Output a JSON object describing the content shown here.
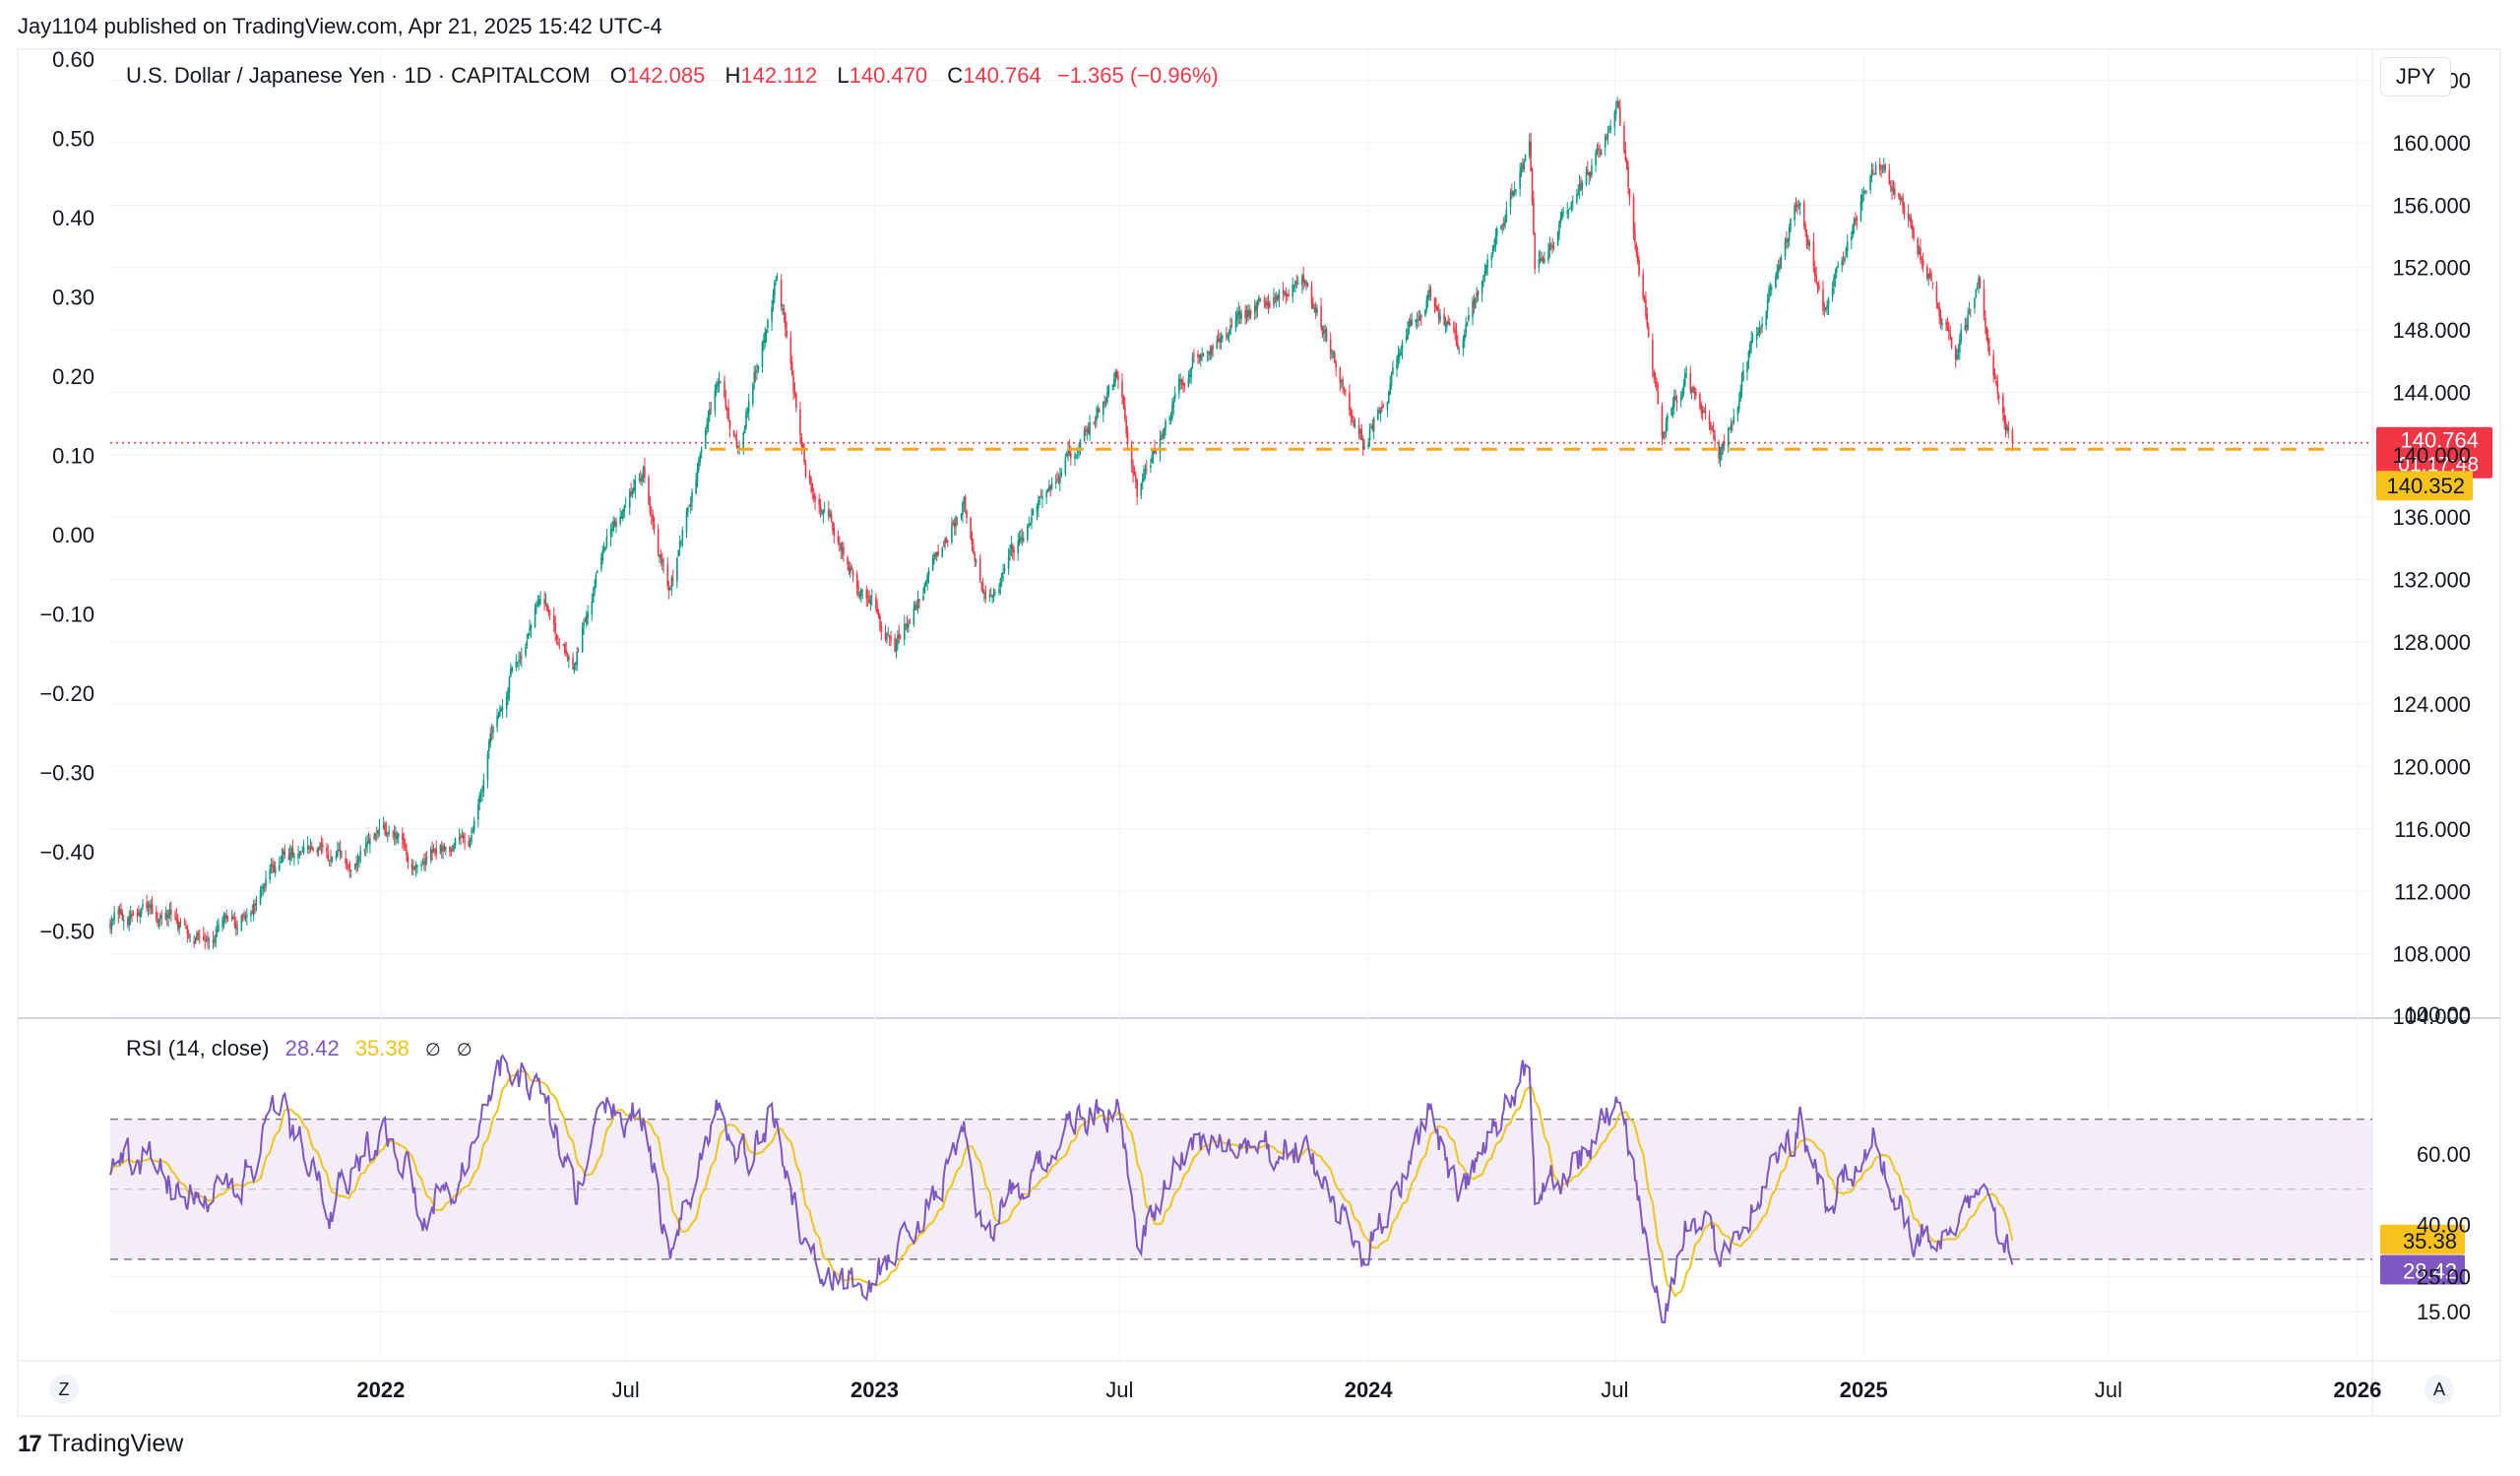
{
  "header": {
    "published": "Jay1104 published on TradingView.com, Apr 21, 2025 15:42 UTC-4"
  },
  "legend": {
    "symbol": "U.S. Dollar / Japanese Yen · 1D · CAPITALCOM",
    "o_label": "O",
    "o_value": "142.085",
    "h_label": "H",
    "h_value": "142.112",
    "l_label": "L",
    "l_value": "140.470",
    "c_label": "C",
    "c_value": "140.764",
    "change": "−1.365 (−0.96%)"
  },
  "rsi_legend": {
    "name": "RSI (14, close)",
    "rsi_value": "28.42",
    "ma_value": "35.38",
    "hidden_1": "∅",
    "hidden_2": "∅"
  },
  "currency_button": "JPY",
  "corner_left": "Z",
  "corner_right": "A",
  "branding": {
    "mark": "17",
    "name": "TradingView"
  },
  "colors": {
    "up": "#089981",
    "down": "#f23645",
    "rsi": "#7e57c2",
    "rsi_ma": "#f0c419",
    "support": "#f5a623",
    "grid": "#f0f3fa",
    "band": "#ede7f6"
  },
  "chart_data": [
    {
      "type": "candlestick",
      "title": "U.S. Dollar / Japanese Yen · 1D · CAPITALCOM",
      "y_unit": "JPY",
      "ylim": [
        104,
        166
      ],
      "x_range": [
        "2021-06-15",
        "2026-01-12"
      ],
      "right_ticks": [
        "164.000",
        "160.000",
        "156.000",
        "152.000",
        "148.000",
        "144.000",
        "140.000",
        "136.000",
        "132.000",
        "128.000",
        "124.000",
        "120.000",
        "116.000",
        "112.000",
        "108.000",
        "104.000"
      ],
      "left_ticks": [
        "0.60",
        "0.50",
        "0.40",
        "0.30",
        "0.20",
        "0.10",
        "0.00",
        "−0.10",
        "−0.20",
        "−0.30",
        "−0.40",
        "−0.50"
      ],
      "x_ticks": [
        {
          "label": "2022",
          "date": "2022-01-01",
          "bold": true
        },
        {
          "label": "Jul",
          "date": "2022-07-01",
          "bold": false
        },
        {
          "label": "2023",
          "date": "2023-01-01",
          "bold": true
        },
        {
          "label": "Jul",
          "date": "2023-07-01",
          "bold": false
        },
        {
          "label": "2024",
          "date": "2024-01-01",
          "bold": true
        },
        {
          "label": "Jul",
          "date": "2024-07-01",
          "bold": false
        },
        {
          "label": "2025",
          "date": "2025-01-01",
          "bold": true
        },
        {
          "label": "Jul",
          "date": "2025-07-01",
          "bold": false
        },
        {
          "label": "2026",
          "date": "2026-01-01",
          "bold": true
        }
      ],
      "keypoints": [
        [
          "2021-06-15",
          110.1
        ],
        [
          "2021-07-10",
          110.6
        ],
        [
          "2021-08-10",
          109.6
        ],
        [
          "2021-09-15",
          109.6
        ],
        [
          "2021-10-20",
          114.0
        ],
        [
          "2021-11-20",
          114.3
        ],
        [
          "2021-12-10",
          113.4
        ],
        [
          "2022-01-05",
          115.8
        ],
        [
          "2022-01-25",
          113.8
        ],
        [
          "2022-02-20",
          115.0
        ],
        [
          "2022-03-07",
          115.3
        ],
        [
          "2022-03-28",
          123.5
        ],
        [
          "2022-04-28",
          130.8
        ],
        [
          "2022-05-24",
          126.8
        ],
        [
          "2022-06-15",
          134.5
        ],
        [
          "2022-07-14",
          139.2
        ],
        [
          "2022-08-02",
          130.8
        ],
        [
          "2022-09-07",
          144.6
        ],
        [
          "2022-09-22",
          140.5
        ],
        [
          "2022-10-21",
          151.8
        ],
        [
          "2022-11-11",
          138.8
        ],
        [
          "2022-12-20",
          131.5
        ],
        [
          "2023-01-16",
          127.5
        ],
        [
          "2023-03-08",
          137.4
        ],
        [
          "2023-03-24",
          130.5
        ],
        [
          "2023-05-30",
          140.7
        ],
        [
          "2023-06-30",
          145.0
        ],
        [
          "2023-07-14",
          137.8
        ],
        [
          "2023-08-25",
          146.4
        ],
        [
          "2023-10-04",
          149.0
        ],
        [
          "2023-11-13",
          151.9
        ],
        [
          "2023-12-28",
          140.9
        ],
        [
          "2024-02-15",
          150.6
        ],
        [
          "2024-03-08",
          146.5
        ],
        [
          "2024-04-29",
          160.0
        ],
        [
          "2024-05-03",
          152.3
        ],
        [
          "2024-06-03",
          156.5
        ],
        [
          "2024-07-03",
          161.9
        ],
        [
          "2024-08-05",
          141.7
        ],
        [
          "2024-08-22",
          145.2
        ],
        [
          "2024-09-16",
          139.6
        ],
        [
          "2024-11-15",
          156.7
        ],
        [
          "2024-12-03",
          149.3
        ],
        [
          "2025-01-10",
          158.9
        ],
        [
          "2025-02-03",
          154.8
        ],
        [
          "2025-03-11",
          146.6
        ],
        [
          "2025-03-27",
          151.2
        ],
        [
          "2025-04-10",
          143.8
        ],
        [
          "2025-04-21",
          140.764
        ]
      ],
      "last_close": 140.764,
      "last_label": "140.764",
      "countdown": "01:17:48",
      "support_level": 140.352,
      "support_label": "140.352"
    },
    {
      "type": "line",
      "name": "RSI (14, close)",
      "ylim": [
        10,
        100
      ],
      "ticks": [
        "100.00",
        "60.00",
        "40.00",
        "25.00",
        "15.00"
      ],
      "tick_values": [
        100,
        60,
        40,
        25,
        15
      ],
      "band": [
        30,
        70
      ],
      "midline": 50,
      "last_rsi": 28.42,
      "last_ma": 35.38,
      "rsi_label": "28.42",
      "ma_label": "35.38",
      "rsi_keypoints": [
        [
          "2021-06-15",
          55
        ],
        [
          "2021-07-10",
          60
        ],
        [
          "2021-08-10",
          46
        ],
        [
          "2021-09-20",
          52
        ],
        [
          "2021-10-20",
          72
        ],
        [
          "2021-11-25",
          46
        ],
        [
          "2022-01-05",
          68
        ],
        [
          "2022-02-01",
          44
        ],
        [
          "2022-03-07",
          58
        ],
        [
          "2022-03-28",
          85
        ],
        [
          "2022-04-28",
          80
        ],
        [
          "2022-05-24",
          48
        ],
        [
          "2022-06-15",
          72
        ],
        [
          "2022-07-14",
          72
        ],
        [
          "2022-08-02",
          30
        ],
        [
          "2022-09-07",
          75
        ],
        [
          "2022-09-22",
          56
        ],
        [
          "2022-10-21",
          72
        ],
        [
          "2022-11-11",
          28
        ],
        [
          "2022-12-20",
          22
        ],
        [
          "2023-01-16",
          30
        ],
        [
          "2023-03-08",
          62
        ],
        [
          "2023-03-24",
          38
        ],
        [
          "2023-05-30",
          70
        ],
        [
          "2023-06-30",
          72
        ],
        [
          "2023-07-14",
          32
        ],
        [
          "2023-08-25",
          65
        ],
        [
          "2023-10-04",
          60
        ],
        [
          "2023-11-13",
          62
        ],
        [
          "2023-12-28",
          30
        ],
        [
          "2024-02-15",
          72
        ],
        [
          "2024-03-08",
          48
        ],
        [
          "2024-04-29",
          85
        ],
        [
          "2024-05-03",
          50
        ],
        [
          "2024-06-03",
          58
        ],
        [
          "2024-07-03",
          75
        ],
        [
          "2024-08-05",
          14
        ],
        [
          "2024-08-22",
          40
        ],
        [
          "2024-09-16",
          32
        ],
        [
          "2024-11-15",
          68
        ],
        [
          "2024-12-03",
          45
        ],
        [
          "2025-01-10",
          65
        ],
        [
          "2025-02-03",
          40
        ],
        [
          "2025-03-11",
          34
        ],
        [
          "2025-03-27",
          55
        ],
        [
          "2025-04-10",
          38
        ],
        [
          "2025-04-21",
          28.42
        ]
      ]
    }
  ]
}
